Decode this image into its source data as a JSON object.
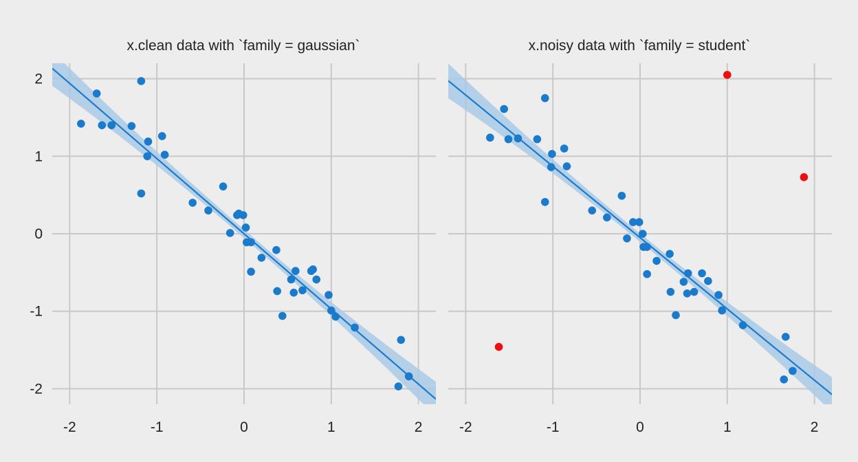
{
  "chart_data": [
    {
      "type": "scatter",
      "title": "x.clean data with `family = gaussian`",
      "xlabel": "",
      "ylabel": "",
      "xlim": [
        -2.2,
        2.2
      ],
      "ylim": [
        -2.2,
        2.2
      ],
      "xticks": [
        -2,
        -1,
        0,
        1,
        2
      ],
      "yticks": [
        -2,
        -1,
        0,
        1,
        2
      ],
      "grid": true,
      "colors": {
        "point": "#1a7acc",
        "line": "#1a7acc",
        "band": "#a9c9e6"
      },
      "fit": {
        "intercept": 0.0,
        "slope": -0.97
      },
      "series": [
        {
          "points": [
            [
              -1.87,
              1.42
            ],
            [
              -1.69,
              1.81
            ],
            [
              -1.63,
              1.4
            ],
            [
              -1.52,
              1.4
            ],
            [
              -1.29,
              1.39
            ],
            [
              -1.18,
              1.97
            ],
            [
              -1.1,
              1.19
            ],
            [
              -1.11,
              1.0
            ],
            [
              -0.94,
              1.26
            ],
            [
              -0.91,
              1.02
            ],
            [
              -1.18,
              0.52
            ],
            [
              -0.59,
              0.4
            ],
            [
              -0.41,
              0.3
            ],
            [
              -0.24,
              0.61
            ],
            [
              -0.16,
              0.01
            ],
            [
              -0.08,
              0.24
            ],
            [
              -0.06,
              0.26
            ],
            [
              -0.01,
              0.24
            ],
            [
              0.02,
              0.08
            ],
            [
              0.03,
              -0.11
            ],
            [
              0.08,
              -0.11
            ],
            [
              0.08,
              -0.49
            ],
            [
              0.2,
              -0.31
            ],
            [
              0.37,
              -0.21
            ],
            [
              0.38,
              -0.74
            ],
            [
              0.44,
              -1.06
            ],
            [
              0.54,
              -0.59
            ],
            [
              0.57,
              -0.76
            ],
            [
              0.59,
              -0.48
            ],
            [
              0.67,
              -0.73
            ],
            [
              0.77,
              -0.48
            ],
            [
              0.79,
              -0.46
            ],
            [
              0.83,
              -0.59
            ],
            [
              0.97,
              -0.79
            ],
            [
              1.0,
              -0.99
            ],
            [
              1.05,
              -1.07
            ],
            [
              1.27,
              -1.21
            ],
            [
              1.77,
              -1.97
            ],
            [
              1.8,
              -1.37
            ],
            [
              1.89,
              -1.84
            ]
          ]
        }
      ]
    },
    {
      "type": "scatter",
      "title": "x.noisy data with `family = student`",
      "xlabel": "",
      "ylabel": "",
      "xlim": [
        -2.2,
        2.2
      ],
      "ylim": [
        -2.2,
        2.2
      ],
      "xticks": [
        -2,
        -1,
        0,
        1,
        2
      ],
      "yticks": [
        -2,
        -1,
        0,
        1,
        2
      ],
      "grid": true,
      "colors": {
        "point": "#1a7acc",
        "outlier": "#f00d0d",
        "line": "#1a7acc",
        "band": "#a9c9e6"
      },
      "fit": {
        "intercept": -0.05,
        "slope": -0.92
      },
      "series": [
        {
          "points": [
            [
              -1.72,
              1.24
            ],
            [
              -1.56,
              1.61
            ],
            [
              -1.51,
              1.22
            ],
            [
              -1.4,
              1.23
            ],
            [
              -1.18,
              1.22
            ],
            [
              -1.09,
              1.75
            ],
            [
              -1.01,
              1.03
            ],
            [
              -1.02,
              0.86
            ],
            [
              -0.87,
              1.1
            ],
            [
              -0.84,
              0.87
            ],
            [
              -1.09,
              0.41
            ],
            [
              -0.55,
              0.3
            ],
            [
              -0.38,
              0.21
            ],
            [
              -0.21,
              0.49
            ],
            [
              -0.15,
              -0.06
            ],
            [
              -0.08,
              0.15
            ],
            [
              -0.01,
              0.15
            ],
            [
              0.03,
              0.0
            ],
            [
              0.04,
              -0.17
            ],
            [
              0.08,
              -0.17
            ],
            [
              0.08,
              -0.52
            ],
            [
              0.19,
              -0.35
            ],
            [
              0.34,
              -0.26
            ],
            [
              0.35,
              -0.75
            ],
            [
              0.41,
              -1.05
            ],
            [
              0.5,
              -0.62
            ],
            [
              0.54,
              -0.77
            ],
            [
              0.55,
              -0.51
            ],
            [
              0.62,
              -0.75
            ],
            [
              0.71,
              -0.51
            ],
            [
              0.78,
              -0.61
            ],
            [
              0.9,
              -0.79
            ],
            [
              0.94,
              -0.99
            ],
            [
              1.18,
              -1.18
            ],
            [
              1.65,
              -1.88
            ],
            [
              1.67,
              -1.33
            ],
            [
              1.75,
              -1.77
            ]
          ]
        },
        {
          "outlier": true,
          "points": [
            [
              1.0,
              2.05
            ],
            [
              1.88,
              0.73
            ],
            [
              -1.62,
              -1.46
            ]
          ]
        }
      ]
    }
  ]
}
